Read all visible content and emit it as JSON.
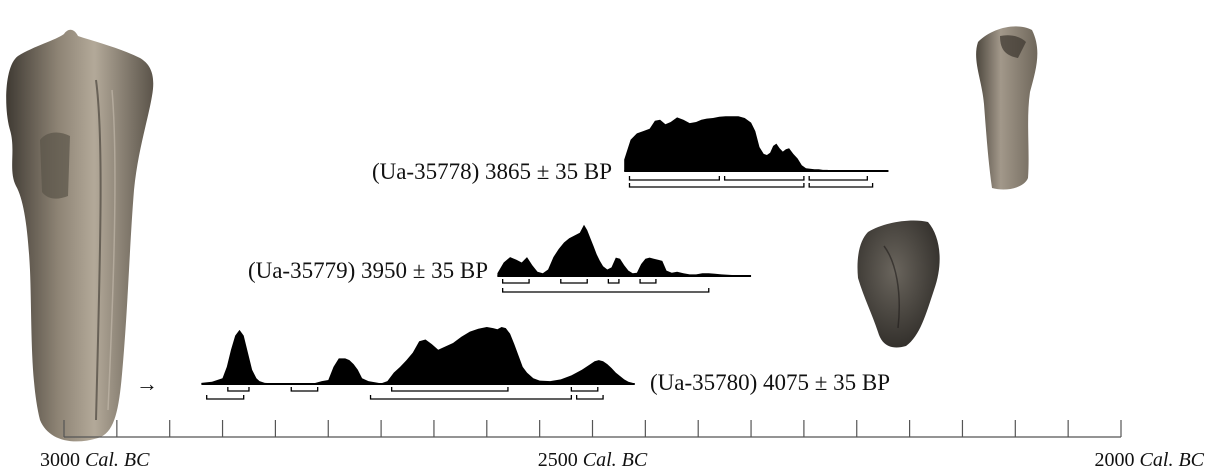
{
  "chart_data": {
    "type": "area",
    "xaxis": {
      "unit": "Cal. BC",
      "range": [
        3000,
        2000
      ],
      "tick_step": 50,
      "labels": [
        {
          "value": 3000,
          "num": "3000",
          "unit": "Cal. BC"
        },
        {
          "value": 2500,
          "num": "2500",
          "unit": "Cal. BC"
        },
        {
          "value": 2000,
          "num": "2000",
          "unit": "Cal. BC"
        }
      ]
    },
    "samples": [
      {
        "label": "(Ua-35778) 3865 ± 35 BP",
        "label_side": "left",
        "range": [
          2470,
          2220
        ],
        "x": [
          2470,
          2464,
          2458,
          2452,
          2446,
          2441,
          2436,
          2431,
          2426,
          2420,
          2414,
          2408,
          2402,
          2397,
          2392,
          2386,
          2380,
          2374,
          2368,
          2362,
          2356,
          2350,
          2346,
          2342,
          2338,
          2335,
          2332,
          2329,
          2326,
          2323,
          2320,
          2317,
          2314,
          2310,
          2306,
          2302,
          2298,
          2294,
          2290,
          2286,
          2282,
          2278,
          2274,
          2270,
          2265,
          2260,
          2250,
          2240,
          2230,
          2220
        ],
        "y": [
          0.2,
          0.55,
          0.66,
          0.7,
          0.74,
          0.88,
          0.9,
          0.82,
          0.86,
          0.94,
          0.9,
          0.84,
          0.86,
          0.9,
          0.92,
          0.93,
          0.95,
          0.96,
          0.96,
          0.96,
          0.93,
          0.85,
          0.7,
          0.42,
          0.3,
          0.28,
          0.32,
          0.44,
          0.48,
          0.4,
          0.34,
          0.38,
          0.4,
          0.3,
          0.22,
          0.1,
          0.05,
          0.04,
          0.03,
          0.03,
          0.02,
          0.02,
          0.01,
          0.01,
          0.01,
          0.01,
          0.01,
          0.0,
          0.0,
          0.0
        ],
        "intervals": [
          {
            "range": [
              2465,
              2380
            ],
            "prob": "68.2"
          },
          {
            "range": [
              2375,
              2300
            ],
            "prob": "68.2"
          },
          {
            "range": [
              2295,
              2240
            ],
            "prob": "68.2"
          },
          {
            "range": [
              2465,
              2300
            ],
            "prob": "95.4"
          },
          {
            "range": [
              2295,
              2235
            ],
            "prob": "95.4"
          }
        ]
      },
      {
        "label": "(Ua-35779) 3950 ± 35 BP",
        "label_side": "left",
        "range": [
          2590,
          2350
        ],
        "x": [
          2590,
          2584,
          2578,
          2572,
          2567,
          2562,
          2557,
          2552,
          2547,
          2542,
          2537,
          2532,
          2527,
          2522,
          2517,
          2512,
          2508,
          2505,
          2502,
          2499,
          2496,
          2493,
          2490,
          2486,
          2482,
          2478,
          2474,
          2470,
          2466,
          2462,
          2458,
          2454,
          2450,
          2446,
          2442,
          2438,
          2434,
          2430,
          2425,
          2420,
          2414,
          2408,
          2402,
          2396,
          2390,
          2384,
          2378,
          2370,
          2360,
          2350
        ],
        "y": [
          0.05,
          0.25,
          0.35,
          0.3,
          0.25,
          0.35,
          0.2,
          0.08,
          0.05,
          0.12,
          0.35,
          0.5,
          0.62,
          0.7,
          0.75,
          0.8,
          0.95,
          0.85,
          0.7,
          0.55,
          0.4,
          0.28,
          0.18,
          0.12,
          0.16,
          0.34,
          0.32,
          0.2,
          0.1,
          0.05,
          0.06,
          0.22,
          0.32,
          0.34,
          0.32,
          0.3,
          0.28,
          0.1,
          0.06,
          0.08,
          0.05,
          0.03,
          0.03,
          0.05,
          0.05,
          0.04,
          0.03,
          0.02,
          0.01,
          0.0
        ],
        "intervals": [
          {
            "range": [
              2585,
              2560
            ],
            "prob": "68.2"
          },
          {
            "range": [
              2530,
              2505
            ],
            "prob": "68.2"
          },
          {
            "range": [
              2485,
              2475
            ],
            "prob": "68.2"
          },
          {
            "range": [
              2455,
              2440
            ],
            "prob": "68.2"
          },
          {
            "range": [
              2585,
              2390
            ],
            "prob": "95.4"
          }
        ]
      },
      {
        "label": "(Ua-35780) 4075 ± 35 BP",
        "label_side": "right",
        "range": [
          2870,
          2460
        ],
        "x": [
          2870,
          2860,
          2850,
          2846,
          2842,
          2838,
          2834,
          2830,
          2826,
          2822,
          2818,
          2815,
          2810,
          2800,
          2790,
          2780,
          2770,
          2762,
          2756,
          2750,
          2745,
          2740,
          2734,
          2730,
          2726,
          2722,
          2718,
          2712,
          2706,
          2700,
          2694,
          2688,
          2682,
          2676,
          2670,
          2664,
          2658,
          2652,
          2646,
          2640,
          2632,
          2624,
          2616,
          2608,
          2600,
          2594,
          2590,
          2586,
          2582,
          2578,
          2574,
          2570,
          2566,
          2562,
          2556,
          2550,
          2540,
          2530,
          2520,
          2510,
          2502,
          2498,
          2494,
          2490,
          2486,
          2482,
          2478,
          2474,
          2470,
          2466,
          2462,
          2460
        ],
        "y": [
          0.02,
          0.04,
          0.1,
          0.3,
          0.6,
          0.85,
          0.95,
          0.85,
          0.55,
          0.25,
          0.1,
          0.05,
          0.02,
          0.01,
          0.0,
          0.0,
          0.0,
          0.02,
          0.05,
          0.07,
          0.3,
          0.45,
          0.45,
          0.42,
          0.35,
          0.25,
          0.1,
          0.05,
          0.03,
          0.01,
          0.05,
          0.2,
          0.3,
          0.42,
          0.55,
          0.75,
          0.78,
          0.7,
          0.6,
          0.65,
          0.72,
          0.83,
          0.92,
          0.97,
          1.0,
          0.98,
          0.96,
          1.0,
          0.98,
          0.88,
          0.7,
          0.5,
          0.3,
          0.2,
          0.1,
          0.06,
          0.05,
          0.08,
          0.15,
          0.25,
          0.35,
          0.4,
          0.42,
          0.4,
          0.35,
          0.28,
          0.2,
          0.14,
          0.08,
          0.04,
          0.02,
          0.0
        ],
        "intervals": [
          {
            "range": [
              2845,
              2825
            ],
            "prob": "68.2"
          },
          {
            "range": [
              2785,
              2760
            ],
            "prob": "68.2"
          },
          {
            "range": [
              2690,
              2580
            ],
            "prob": "68.2"
          },
          {
            "range": [
              2520,
              2495
            ],
            "prob": "68.2"
          },
          {
            "range": [
              2865,
              2830
            ],
            "prob": "95.4"
          },
          {
            "range": [
              2710,
              2520
            ],
            "prob": "95.4"
          },
          {
            "range": [
              2515,
              2490
            ],
            "prob": "95.4"
          }
        ]
      }
    ],
    "arrow_glyph": "→"
  }
}
